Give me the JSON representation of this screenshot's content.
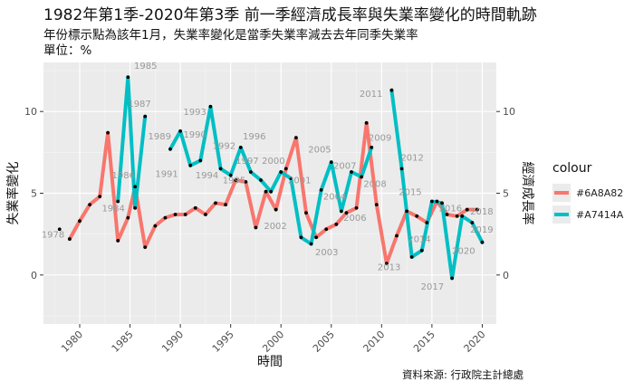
{
  "title": "1982年第1季-2020年第3季 前一季經濟成長率與失業率變化的時間軌跡",
  "subtitle_lines": [
    "年份標示點為該年1月，失業率變化是當季失業率減去去年同季失業率",
    "單位：%"
  ],
  "caption": "資料來源: 行政院主計總處",
  "colors": {
    "a": "#F8766D",
    "b": "#00BFC4",
    "point": "#000000",
    "year_label": "#999999"
  },
  "legend": {
    "title": "colour",
    "items": [
      {
        "label": "#6A8A82",
        "color": "#F8766D"
      },
      {
        "label": "#A7414A",
        "color": "#00BFC4"
      }
    ]
  },
  "chart_data": {
    "type": "line",
    "xlabel": "時間",
    "ylabel": "失業率變化",
    "y2label": "經濟成長率",
    "xlim": [
      1976.4,
      2021.4
    ],
    "ylim": [
      -3,
      13
    ],
    "x_ticks": [
      1980,
      1985,
      1990,
      1995,
      2000,
      2005,
      2010,
      2015,
      2020
    ],
    "y_ticks": [
      0,
      5,
      10
    ],
    "grid": true,
    "legend_position": "right",
    "series": [
      {
        "color": "#F8766D",
        "points": [
          [
            1979,
            2.2
          ],
          [
            1980,
            3.3
          ],
          [
            1981,
            4.3
          ],
          [
            1982,
            4.8
          ],
          [
            1982.8,
            8.7
          ],
          [
            1983.8,
            2.1
          ],
          [
            1984.8,
            3.5
          ],
          [
            1985.5,
            5.4
          ],
          [
            1986.5,
            1.7
          ],
          [
            1987.5,
            3.0
          ],
          [
            1988.5,
            3.5
          ],
          [
            1989.5,
            3.7
          ],
          [
            1990.5,
            3.7
          ],
          [
            1991.5,
            4.1
          ],
          [
            1992.5,
            3.7
          ],
          [
            1993.5,
            4.4
          ],
          [
            1994.5,
            4.3
          ],
          [
            1995.5,
            5.8
          ],
          [
            1996.5,
            5.7
          ],
          [
            1997.5,
            2.9
          ],
          [
            1998.5,
            5.1
          ],
          [
            1999.5,
            4.0
          ],
          [
            2000.5,
            6.5
          ],
          [
            2001.5,
            8.4
          ],
          [
            2002.5,
            3.8
          ],
          [
            2003.5,
            2.3
          ],
          [
            2004.5,
            2.8
          ],
          [
            2005.5,
            3.1
          ],
          [
            2006.5,
            3.8
          ],
          [
            2007.5,
            4.1
          ],
          [
            2008.5,
            9.3
          ],
          [
            2009.5,
            4.3
          ],
          [
            2010.5,
            0.7
          ],
          [
            2011.5,
            2.4
          ],
          [
            2012.5,
            3.9
          ],
          [
            2013.5,
            3.6
          ],
          [
            2014.5,
            3.2
          ],
          [
            2015.5,
            4.5
          ],
          [
            2016.5,
            3.7
          ],
          [
            2017.5,
            3.6
          ],
          [
            2018.5,
            4.0
          ],
          [
            2019.5,
            4.0
          ]
        ]
      },
      {
        "color": "#00BFC4",
        "points": [
          [
            1983.8,
            4.5
          ],
          [
            1984.8,
            12.1
          ],
          [
            1985.5,
            4.1
          ],
          [
            1986.5,
            9.7
          ]
        ]
      },
      {
        "color": "#00BFC4",
        "points": [
          [
            1989,
            7.7
          ],
          [
            1990,
            8.8
          ],
          [
            1991,
            6.7
          ],
          [
            1992,
            7.0
          ],
          [
            1993,
            10.3
          ],
          [
            1994,
            6.5
          ],
          [
            1995,
            6.1
          ],
          [
            1996,
            7.8
          ],
          [
            1997,
            6.3
          ],
          [
            1998,
            5.8
          ],
          [
            1999,
            5.1
          ],
          [
            2000,
            6.3
          ],
          [
            2001,
            5.9
          ],
          [
            2002,
            2.3
          ],
          [
            2003,
            1.9
          ],
          [
            2004,
            5.2
          ],
          [
            2005,
            6.9
          ],
          [
            2006,
            3.9
          ],
          [
            2007,
            6.3
          ],
          [
            2008,
            6.0
          ],
          [
            2009,
            7.8
          ]
        ]
      },
      {
        "color": "#00BFC4",
        "points": [
          [
            2011,
            11.3
          ],
          [
            2012,
            6.5
          ],
          [
            2013,
            1.1
          ],
          [
            2014,
            1.5
          ],
          [
            2015,
            4.5
          ],
          [
            2016,
            4.4
          ],
          [
            2017,
            -0.2
          ],
          [
            2018,
            3.6
          ],
          [
            2019,
            3.2
          ],
          [
            2020,
            2.0
          ]
        ]
      }
    ],
    "year_labels": [
      {
        "text": "1978",
        "x": 1976.2,
        "y": 2.3
      },
      {
        "text": "1984",
        "x": 1982.2,
        "y": 3.9
      },
      {
        "text": "1985",
        "x": 1985.4,
        "y": 12.6
      },
      {
        "text": "1986",
        "x": 1983.2,
        "y": 5.9
      },
      {
        "text": "1987",
        "x": 1984.8,
        "y": 10.3
      },
      {
        "text": "1989",
        "x": 1986.8,
        "y": 8.3
      },
      {
        "text": "1991",
        "x": 1987.5,
        "y": 6.0
      },
      {
        "text": "1993",
        "x": 1990.3,
        "y": 9.8
      },
      {
        "text": "1990",
        "x": 1990.3,
        "y": 8.4
      },
      {
        "text": "1994",
        "x": 1991.5,
        "y": 5.9
      },
      {
        "text": "1992",
        "x": 1993.2,
        "y": 7.7
      },
      {
        "text": "1996",
        "x": 1996.2,
        "y": 8.3
      },
      {
        "text": "1997",
        "x": 1995.5,
        "y": 6.8
      },
      {
        "text": "1995",
        "x": 1994.2,
        "y": 5.6
      },
      {
        "text": "2000",
        "x": 1998.1,
        "y": 6.8
      },
      {
        "text": "2001",
        "x": 2000.7,
        "y": 5.6
      },
      {
        "text": "2002",
        "x": 1998.3,
        "y": 2.8
      },
      {
        "text": "2003",
        "x": 2003.4,
        "y": 1.2
      },
      {
        "text": "2004",
        "x": 2004.2,
        "y": 4.6
      },
      {
        "text": "2005",
        "x": 2002.7,
        "y": 7.5
      },
      {
        "text": "2006",
        "x": 2006.2,
        "y": 3.3
      },
      {
        "text": "2007",
        "x": 2005.2,
        "y": 6.5
      },
      {
        "text": "2008",
        "x": 2008.2,
        "y": 5.4
      },
      {
        "text": "2009",
        "x": 2008.7,
        "y": 8.2
      },
      {
        "text": "2011",
        "x": 2007.8,
        "y": 10.9
      },
      {
        "text": "2012",
        "x": 2011.9,
        "y": 7.0
      },
      {
        "text": "2013",
        "x": 2009.6,
        "y": 0.3
      },
      {
        "text": "2014",
        "x": 2012.6,
        "y": 2.0
      },
      {
        "text": "2015",
        "x": 2011.7,
        "y": 4.9
      },
      {
        "text": "2016",
        "x": 2015.7,
        "y": 3.9
      },
      {
        "text": "2017",
        "x": 2013.9,
        "y": -0.9
      },
      {
        "text": "2018",
        "x": 2018.8,
        "y": 3.7
      },
      {
        "text": "2019",
        "x": 2018.8,
        "y": 2.6
      },
      {
        "text": "2020",
        "x": 2017.0,
        "y": 1.3
      }
    ]
  }
}
